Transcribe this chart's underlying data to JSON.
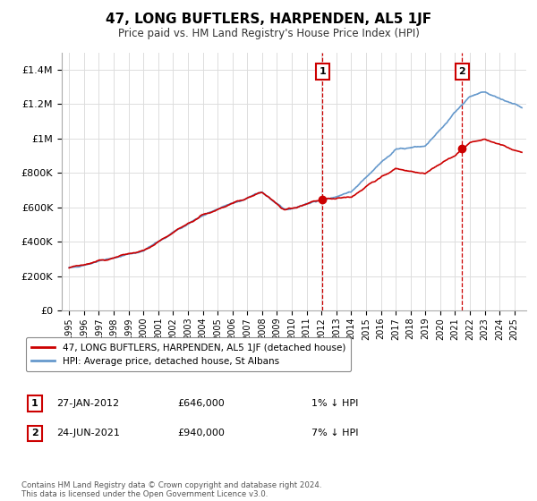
{
  "title": "47, LONG BUFTLERS, HARPENDEN, AL5 1JF",
  "subtitle": "Price paid vs. HM Land Registry's House Price Index (HPI)",
  "legend_line1": "47, LONG BUFTLERS, HARPENDEN, AL5 1JF (detached house)",
  "legend_line2": "HPI: Average price, detached house, St Albans",
  "annotation1_label": "1",
  "annotation1_date": "27-JAN-2012",
  "annotation1_price": "£646,000",
  "annotation1_note": "1% ↓ HPI",
  "annotation2_label": "2",
  "annotation2_date": "24-JUN-2021",
  "annotation2_price": "£940,000",
  "annotation2_note": "7% ↓ HPI",
  "footer": "Contains HM Land Registry data © Crown copyright and database right 2024.\nThis data is licensed under the Open Government Licence v3.0.",
  "line_color_red": "#cc0000",
  "line_color_blue": "#6699cc",
  "annotation_color": "#cc0000",
  "background_color": "#ffffff",
  "grid_color": "#dddddd",
  "ylim": [
    0,
    1500000
  ],
  "yticks": [
    0,
    200000,
    400000,
    600000,
    800000,
    1000000,
    1200000,
    1400000
  ],
  "ytick_labels": [
    "£0",
    "£200K",
    "£400K",
    "£600K",
    "£800K",
    "£1M",
    "£1.2M",
    "£1.4M"
  ],
  "sale1_x": 2012.07,
  "sale1_y": 646000,
  "sale2_x": 2021.48,
  "sale2_y": 940000,
  "xlim_left": 1994.5,
  "xlim_right": 2025.8
}
